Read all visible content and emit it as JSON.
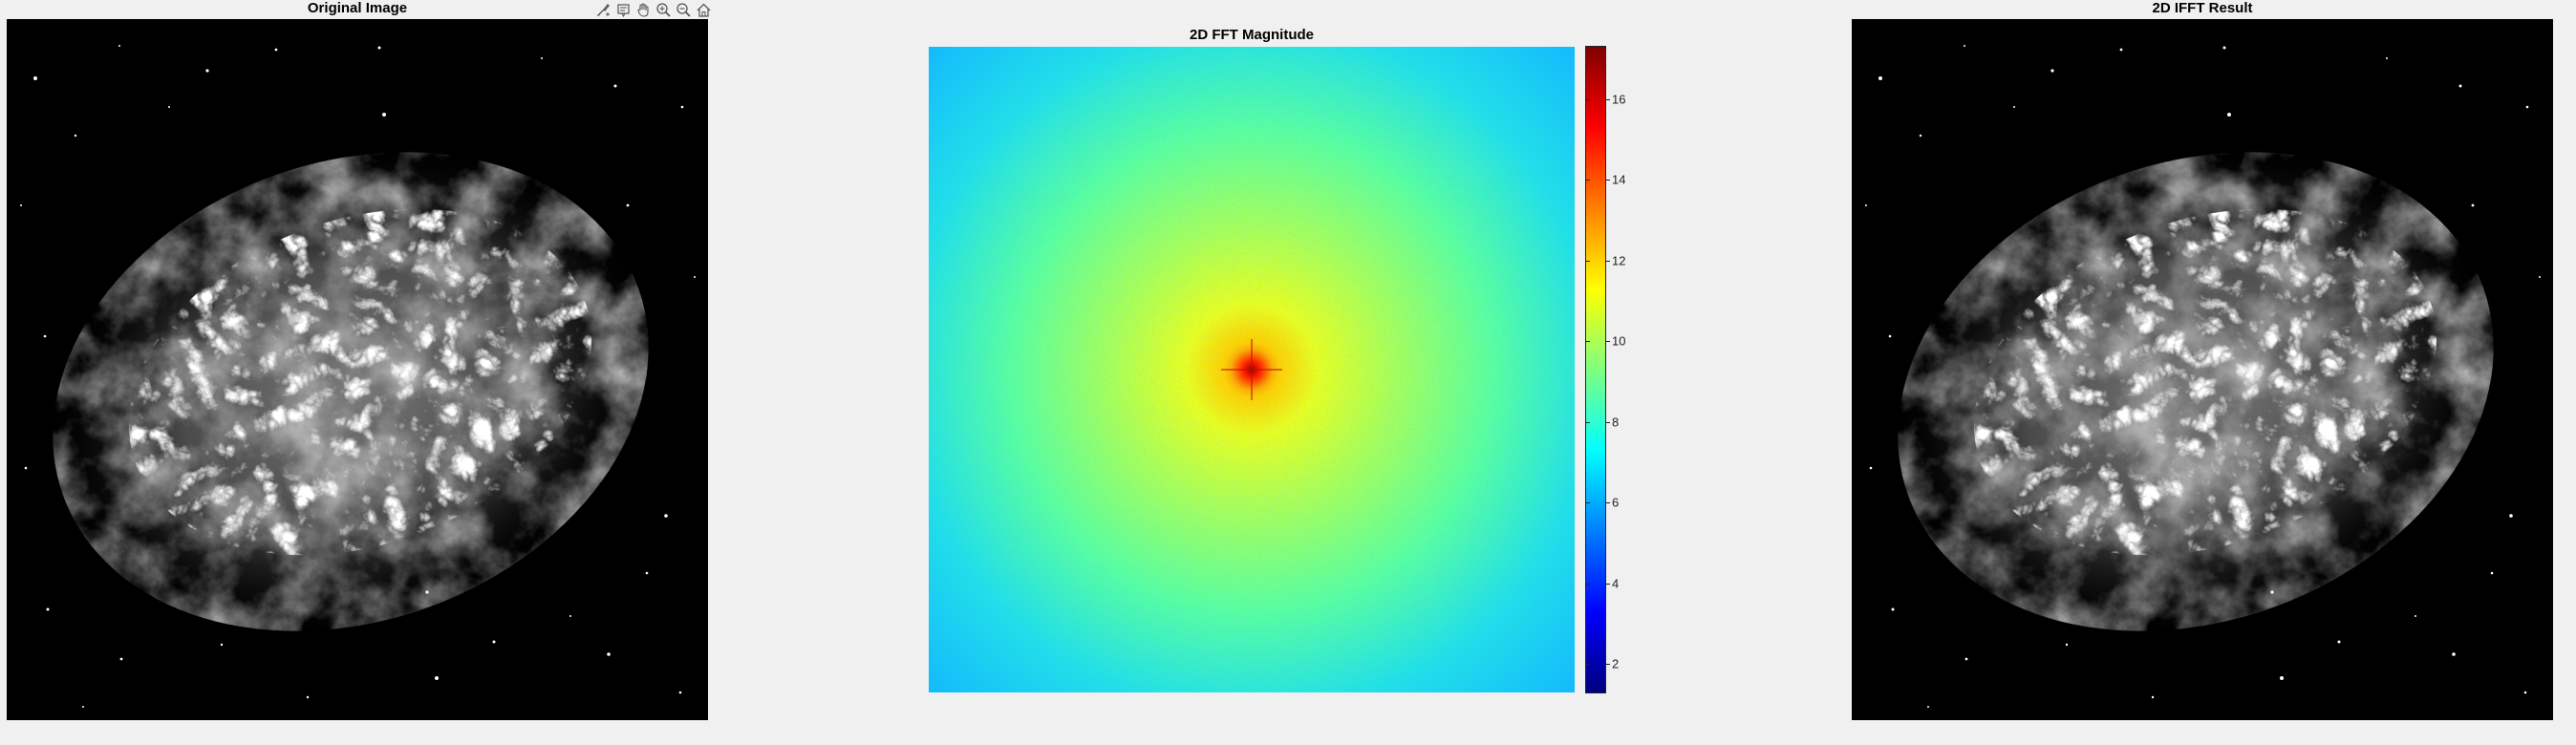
{
  "figure": {
    "panels": {
      "original": {
        "title": "Original Image"
      },
      "fft": {
        "title": "2D FFT Magnitude"
      },
      "ifft": {
        "title": "2D IFFT Result"
      }
    },
    "colorbar": {
      "colormap": "jet",
      "range": [
        1.3,
        17.3
      ],
      "ticks": [
        "2",
        "4",
        "6",
        "8",
        "10",
        "12",
        "14",
        "16"
      ]
    }
  },
  "axes_toolbar": {
    "buttons": [
      {
        "name": "brush-icon"
      },
      {
        "name": "datatip-icon"
      },
      {
        "name": "pan-icon"
      },
      {
        "name": "zoom-in-icon"
      },
      {
        "name": "zoom-out-icon"
      },
      {
        "name": "home-icon"
      }
    ]
  }
}
